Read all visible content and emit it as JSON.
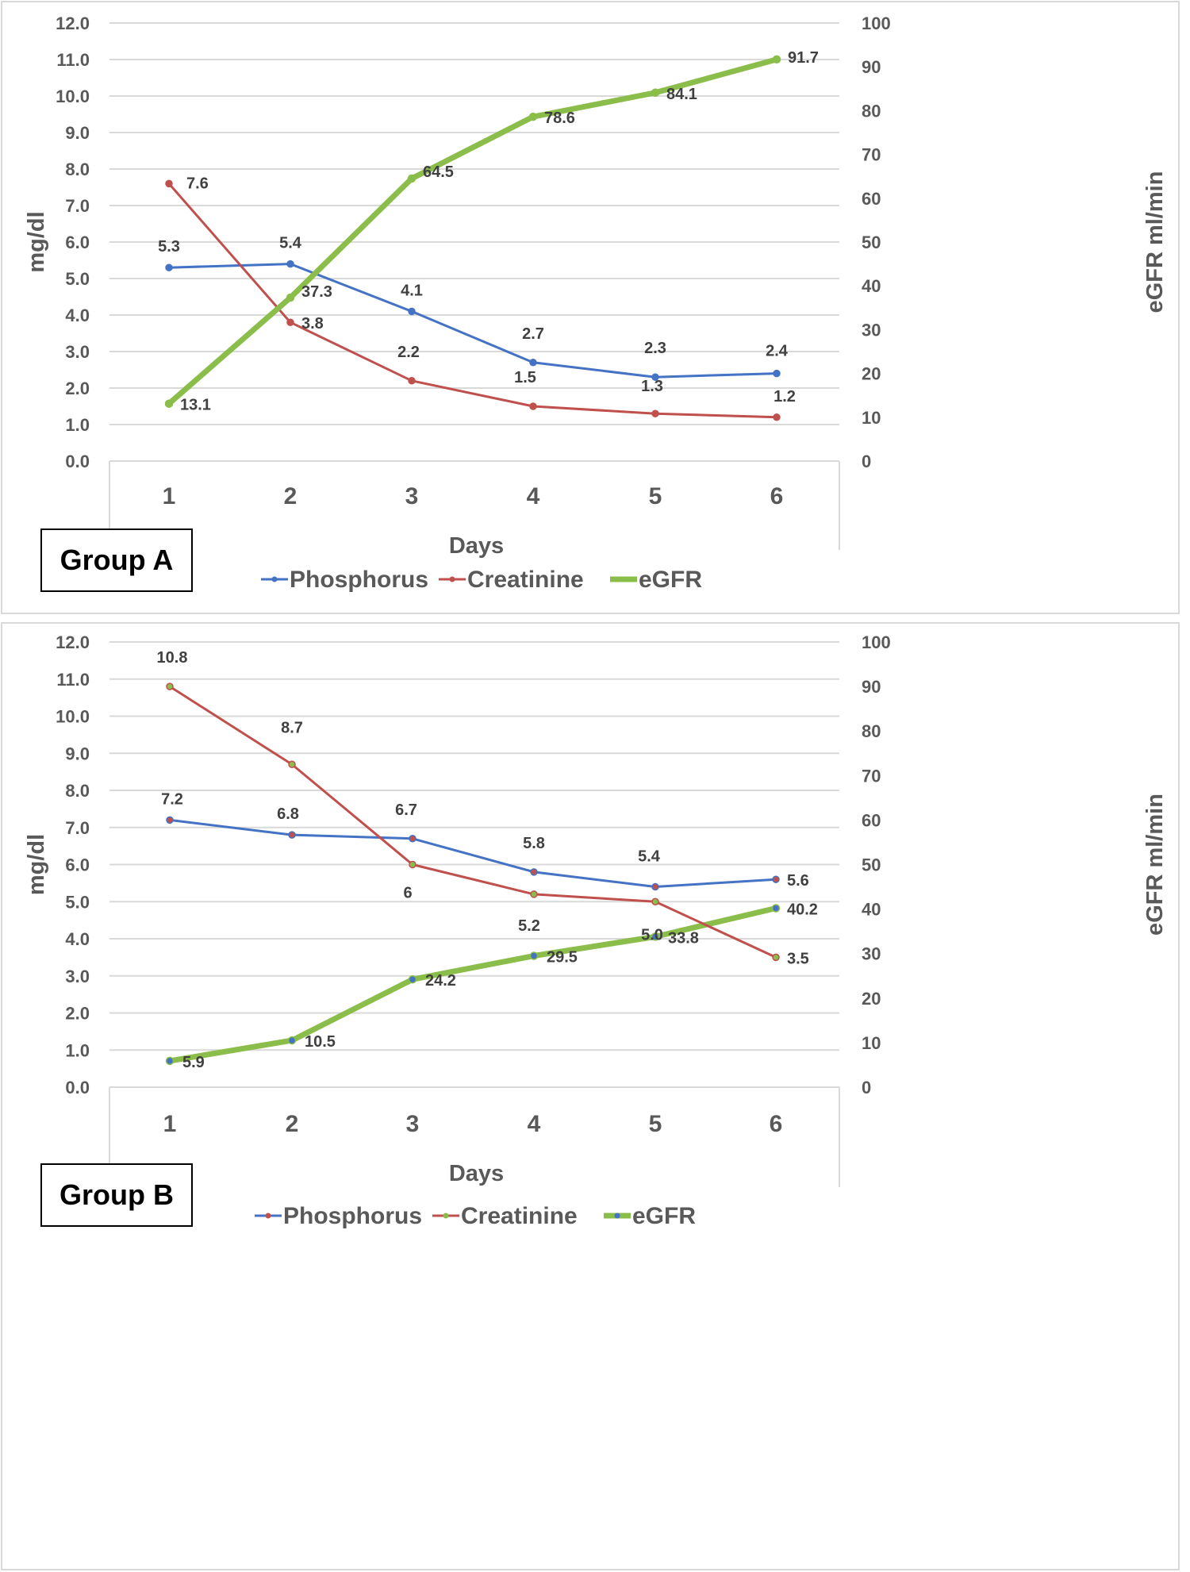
{
  "chart_data": [
    {
      "type": "line",
      "title": "Group A",
      "xlabel": "Days",
      "ylabel": "mg/dl",
      "y2label": "eGFR ml/min",
      "categories": [
        "1",
        "2",
        "3",
        "4",
        "5",
        "6"
      ],
      "ylim": [
        0,
        12
      ],
      "y2lim": [
        0,
        100
      ],
      "yticks": [
        "0.0",
        "1.0",
        "2.0",
        "3.0",
        "4.0",
        "5.0",
        "6.0",
        "7.0",
        "8.0",
        "9.0",
        "10.0",
        "11.0",
        "12.0"
      ],
      "y2ticks": [
        "0",
        "10",
        "20",
        "30",
        "40",
        "50",
        "60",
        "70",
        "80",
        "90",
        "100"
      ],
      "grid": true,
      "legend_position": "bottom",
      "series": [
        {
          "name": "Phosphorus",
          "axis": "left",
          "color": "#4472c4",
          "values": [
            5.3,
            5.4,
            4.1,
            2.7,
            2.3,
            2.4
          ],
          "labels": [
            "5.3",
            "5.4",
            "4.1",
            "2.7",
            "2.3",
            "2.4"
          ]
        },
        {
          "name": "Creatinine",
          "axis": "left",
          "color": "#c0504d",
          "values": [
            7.6,
            3.8,
            2.2,
            1.5,
            1.3,
            1.2
          ],
          "labels": [
            "7.6",
            "3.8",
            "2.2",
            "1.5",
            "1.3",
            "1.2"
          ]
        },
        {
          "name": "eGFR",
          "axis": "right",
          "color": "#8bbd4a",
          "values": [
            13.1,
            37.3,
            64.5,
            78.6,
            84.1,
            91.7
          ],
          "labels": [
            "13.1",
            "37.3",
            "64.5",
            "78.6",
            "84.1",
            "91.7"
          ]
        }
      ]
    },
    {
      "type": "line",
      "title": "Group B",
      "xlabel": "Days",
      "ylabel": "mg/dl",
      "y2label": "eGFR ml/min",
      "categories": [
        "1",
        "2",
        "3",
        "4",
        "5",
        "6"
      ],
      "ylim": [
        0,
        12
      ],
      "y2lim": [
        0,
        100
      ],
      "yticks": [
        "0.0",
        "1.0",
        "2.0",
        "3.0",
        "4.0",
        "5.0",
        "6.0",
        "7.0",
        "8.0",
        "9.0",
        "10.0",
        "11.0",
        "12.0"
      ],
      "y2ticks": [
        "0",
        "10",
        "20",
        "30",
        "40",
        "50",
        "60",
        "70",
        "80",
        "90",
        "100"
      ],
      "grid": true,
      "legend_position": "bottom",
      "series": [
        {
          "name": "Phosphorus",
          "axis": "left",
          "color": "#4472c4",
          "marker_color": "#c0504d",
          "values": [
            7.2,
            6.8,
            6.7,
            5.8,
            5.4,
            5.6
          ],
          "labels": [
            "7.2",
            "6.8",
            "6.7",
            "5.8",
            "5.4",
            "5.6"
          ]
        },
        {
          "name": "Creatinine",
          "axis": "left",
          "color": "#c0504d",
          "marker_color": "#8bbd4a",
          "values": [
            10.8,
            8.7,
            6.0,
            5.2,
            5.0,
            3.5
          ],
          "labels": [
            "10.8",
            "8.7",
            "6",
            "5.2",
            "5.0",
            "3.5"
          ]
        },
        {
          "name": "eGFR",
          "axis": "right",
          "color": "#8bbd4a",
          "marker_color": "#4472c4",
          "values": [
            5.9,
            10.5,
            24.2,
            29.5,
            33.8,
            40.2
          ],
          "labels": [
            "5.9",
            "10.5",
            "24.2",
            "29.5",
            "33.8",
            "40.2"
          ]
        }
      ]
    }
  ],
  "labels": {
    "group_a": "Group A",
    "group_b": "Group B"
  }
}
